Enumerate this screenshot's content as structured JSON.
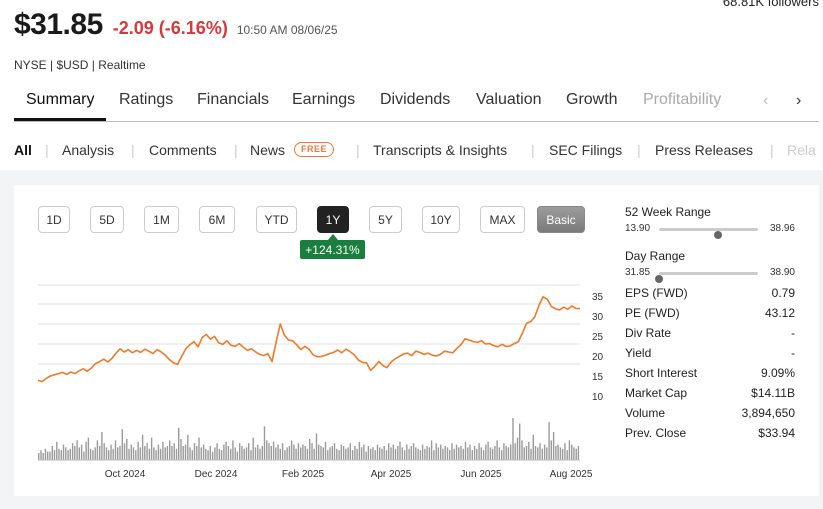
{
  "followers": "68.81K followers",
  "quote": {
    "price": "$31.85",
    "change": "-2.09 (-6.16%)",
    "time": "10:50 AM 08/06/25",
    "exchange": "NYSE | $USD | Realtime",
    "change_color": "#d43a3a"
  },
  "tabs": [
    "Summary",
    "Ratings",
    "Financials",
    "Earnings",
    "Dividends",
    "Valuation",
    "Growth",
    "Profitability"
  ],
  "tabs_active": "Summary",
  "subnav": {
    "items": [
      "All",
      "Analysis",
      "Comments",
      "News",
      "Transcripts & Insights",
      "SEC Filings",
      "Press Releases",
      "Rela"
    ],
    "free_badge": "FREE"
  },
  "ranges": [
    "1D",
    "5D",
    "1M",
    "6M",
    "YTD",
    "1Y",
    "5Y",
    "10Y",
    "MAX"
  ],
  "range_active": "1Y",
  "basic_label": "Basic",
  "performance": "+124.31%",
  "performance_color": "#1a7f3c",
  "chart_data": {
    "type": "line",
    "line_color": "#f07a2a",
    "x_ticks": [
      "Oct 2024",
      "Dec 2024",
      "Feb 2025",
      "Apr 2025",
      "Jun 2025",
      "Aug 2025"
    ],
    "y_ticks": [
      "35",
      "30",
      "25",
      "20",
      "15",
      "10"
    ],
    "ylim": [
      5,
      38
    ],
    "series": [
      {
        "values": [
          13.9,
          13.6,
          14.4,
          15.0,
          15.3,
          15.6,
          15.9,
          15.4,
          16.0,
          15.6,
          16.3,
          16.8,
          16.2,
          17.0,
          18.1,
          18.6,
          19.2,
          18.5,
          19.4,
          20.7,
          21.8,
          21.0,
          21.6,
          20.8,
          21.4,
          20.9,
          21.7,
          21.2,
          20.6,
          21.6,
          21.0,
          20.2,
          19.1,
          18.3,
          17.9,
          19.9,
          21.8,
          22.8,
          23.6,
          22.3,
          24.6,
          25.4,
          24.2,
          24.9,
          23.3,
          22.9,
          23.8,
          22.7,
          22.4,
          23.1,
          22.2,
          21.4,
          21.8,
          21.0,
          20.4,
          20.1,
          20.6,
          18.6,
          23.6,
          28.0,
          25.2,
          24.0,
          23.8,
          22.8,
          21.6,
          22.4,
          21.7,
          20.3,
          19.8,
          19.9,
          20.2,
          20.6,
          20.9,
          21.5,
          20.8,
          21.7,
          21.1,
          20.3,
          19.0,
          18.4,
          18.3,
          16.4,
          17.4,
          18.6,
          17.6,
          17.1,
          18.5,
          19.3,
          19.9,
          20.5,
          20.7,
          20.1,
          21.2,
          20.9,
          20.4,
          20.7,
          20.2,
          20.0,
          20.4,
          21.2,
          21.0,
          20.8,
          21.9,
          22.8,
          24.3,
          24.0,
          23.6,
          23.4,
          23.8,
          23.0,
          23.1,
          22.6,
          22.3,
          22.9,
          22.4,
          22.5,
          23.1,
          23.6,
          25.8,
          28.2,
          28.6,
          29.8,
          32.6,
          34.8,
          34.2,
          32.4,
          31.8,
          31.5,
          32.2,
          31.7,
          32.5,
          31.9,
          31.85
        ]
      }
    ],
    "volume": [
      5,
      7,
      5,
      8,
      6,
      6,
      10,
      7,
      13,
      8,
      7,
      11,
      9,
      7,
      8,
      12,
      10,
      14,
      9,
      11,
      6,
      13,
      16,
      8,
      7,
      9,
      14,
      10,
      20,
      12,
      9,
      7,
      11,
      8,
      14,
      9,
      10,
      22,
      12,
      15,
      8,
      11,
      9,
      7,
      13,
      9,
      18,
      10,
      12,
      8,
      16,
      9,
      7,
      11,
      8,
      13,
      9,
      10,
      14,
      10,
      12,
      8,
      23,
      15,
      10,
      11,
      18,
      9,
      7,
      12,
      10,
      16,
      9,
      11,
      8,
      7,
      10,
      6,
      9,
      12,
      8,
      7,
      11,
      13,
      10,
      8,
      14,
      9,
      6,
      12,
      10,
      8,
      9,
      12,
      7,
      16,
      9,
      11,
      8,
      10,
      24,
      14,
      12,
      10,
      13,
      9,
      11,
      8,
      12,
      7,
      9,
      10,
      14,
      11,
      8,
      12,
      9,
      11,
      10,
      8,
      15,
      12,
      8,
      19,
      11,
      10,
      9,
      13,
      7,
      9,
      10,
      12,
      8,
      7,
      11,
      10,
      8,
      9,
      12,
      7,
      10,
      8,
      13,
      9,
      11,
      6,
      10,
      8,
      9,
      7,
      11,
      9,
      8,
      10,
      7,
      12,
      9,
      11,
      8,
      10,
      13,
      9,
      7,
      11,
      8,
      10,
      12,
      9,
      8,
      7,
      11,
      8,
      10,
      9,
      14,
      7,
      12,
      9,
      11,
      8,
      10,
      9,
      7,
      12,
      8,
      11,
      9,
      10,
      8,
      13,
      9,
      11,
      7,
      10,
      8,
      12,
      9,
      7,
      11,
      13,
      9,
      8,
      10,
      14,
      9,
      7,
      12,
      10,
      9,
      11,
      30,
      12,
      16,
      26,
      14,
      9,
      10,
      13,
      8,
      18,
      10,
      9,
      12,
      8,
      11,
      9,
      27,
      14,
      20,
      10,
      11,
      9,
      8,
      12,
      7,
      14,
      11,
      9,
      8,
      10
    ]
  },
  "stats": {
    "week52": {
      "label": "52 Week Range",
      "low": "13.90",
      "high": "38.96",
      "position": 0.6
    },
    "day": {
      "label": "Day Range",
      "low": "31.85",
      "high": "38.90",
      "position": 0.0
    },
    "rows": [
      {
        "label": "EPS (FWD)",
        "value": "0.79"
      },
      {
        "label": "PE (FWD)",
        "value": "43.12"
      },
      {
        "label": "Div Rate",
        "value": "-"
      },
      {
        "label": "Yield",
        "value": "-"
      },
      {
        "label": "Short Interest",
        "value": "9.09%"
      },
      {
        "label": "Market Cap",
        "value": "$14.11B"
      },
      {
        "label": "Volume",
        "value": "3,894,650"
      },
      {
        "label": "Prev. Close",
        "value": "$33.94"
      }
    ]
  }
}
